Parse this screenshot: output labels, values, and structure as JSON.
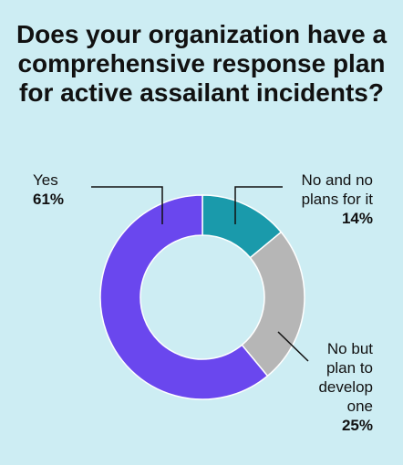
{
  "chart_data": {
    "type": "donut",
    "title": "Does your organization have a comprehensive response plan for active assailant incidents?",
    "categories": [
      "No and no plans for it",
      "No but plan to develop one",
      "Yes"
    ],
    "values": [
      14,
      25,
      61
    ],
    "value_labels": [
      "14%",
      "25%",
      "61%"
    ],
    "colors": [
      "#1a9aab",
      "#b6b6b6",
      "#6a47ee"
    ]
  }
}
